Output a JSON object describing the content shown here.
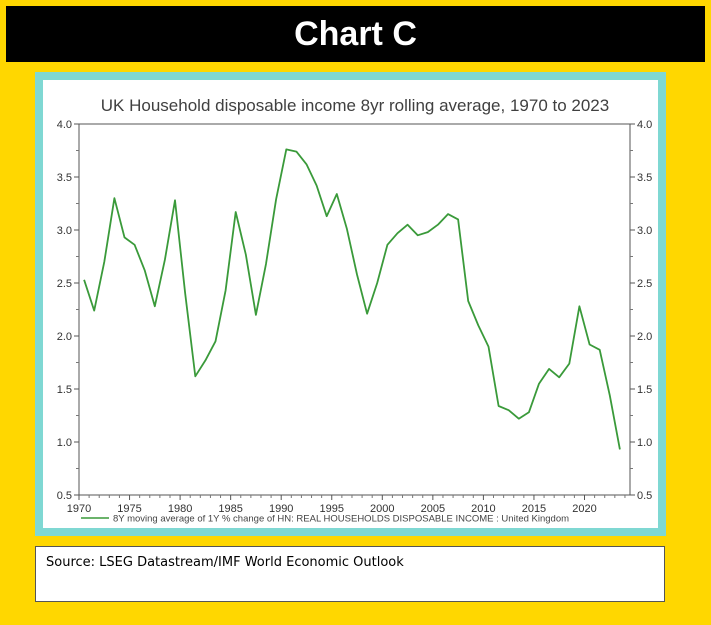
{
  "header": {
    "title": "Chart C"
  },
  "source": {
    "text": "Source:  LSEG Datastream/IMF World Economic Outlook"
  },
  "colors": {
    "background": "#ffd700",
    "frame": "#7fd8d3",
    "line": "#3a9a3a",
    "header_bg": "#000000"
  },
  "chart_data": {
    "type": "line",
    "title": "UK Household disposable income 8yr rolling average, 1970 to 2023",
    "xlabel": "",
    "ylabel": "",
    "xlim": [
      1970,
      2024.5
    ],
    "ylim": [
      0.5,
      4.0
    ],
    "x_ticks": [
      1970,
      1975,
      1980,
      1985,
      1990,
      1995,
      2000,
      2005,
      2010,
      2015,
      2020
    ],
    "x_tick_labels": [
      "1970",
      "1975",
      "1980",
      "1985",
      "1990",
      "1995",
      "2000",
      "2005",
      "2010",
      "2015",
      "2020"
    ],
    "y_ticks": [
      0.5,
      1.0,
      1.5,
      2.0,
      2.5,
      3.0,
      3.5,
      4.0
    ],
    "y_tick_labels": [
      "0.5",
      "1.0",
      "1.5",
      "2.0",
      "2.5",
      "3.0",
      "3.5",
      "4.0"
    ],
    "grid": false,
    "dual_y_axis": true,
    "legend_position": "bottom",
    "series": [
      {
        "name": "8Y moving average of 1Y % change of HN: REAL HOUSEHOLDS DISPOSABLE INCOME : United Kingdom",
        "x": [
          1970.5,
          1971.5,
          1972.5,
          1973.5,
          1974.5,
          1975.5,
          1976.5,
          1977.5,
          1978.5,
          1979.5,
          1980.5,
          1981.5,
          1982.5,
          1983.5,
          1984.5,
          1985.5,
          1986.5,
          1987.5,
          1988.5,
          1989.5,
          1990.5,
          1991.5,
          1992.5,
          1993.5,
          1994.5,
          1995.5,
          1996.5,
          1997.5,
          1998.5,
          1999.5,
          2000.5,
          2001.5,
          2002.5,
          2003.5,
          2004.5,
          2005.5,
          2006.5,
          2007.5,
          2008.5,
          2009.5,
          2010.5,
          2011.5,
          2012.5,
          2013.5,
          2014.5,
          2015.5,
          2016.5,
          2017.5,
          2018.5,
          2019.5,
          2020.5,
          2021.5,
          2022.5,
          2023.5
        ],
        "values": [
          2.53,
          2.24,
          2.7,
          3.3,
          2.93,
          2.86,
          2.62,
          2.28,
          2.72,
          3.28,
          2.4,
          1.62,
          1.77,
          1.95,
          2.43,
          3.17,
          2.77,
          2.2,
          2.68,
          3.29,
          3.76,
          3.74,
          3.62,
          3.42,
          3.13,
          3.34,
          3.01,
          2.58,
          2.21,
          2.5,
          2.86,
          2.97,
          3.05,
          2.95,
          2.98,
          3.05,
          3.15,
          3.1,
          2.33,
          2.1,
          1.9,
          1.34,
          1.3,
          1.22,
          1.28,
          1.55,
          1.69,
          1.61,
          1.74,
          2.28,
          1.92,
          1.87,
          1.44,
          0.93
        ]
      }
    ]
  }
}
